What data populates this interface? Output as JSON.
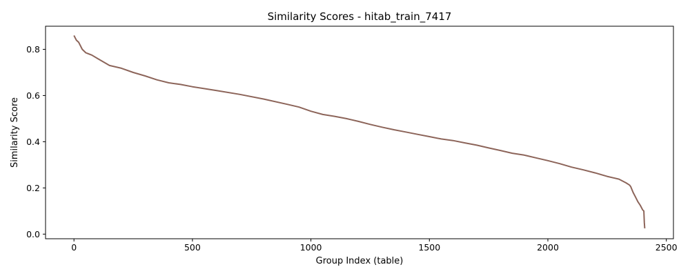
{
  "chart_data": {
    "type": "line",
    "title": "Similarity Scores - hitab_train_7417",
    "xlabel": "Group Index (table)",
    "ylabel": "Similarity Score",
    "xlim": [
      -120,
      2530
    ],
    "ylim": [
      -0.02,
      0.9
    ],
    "xticks": [
      0,
      500,
      1000,
      1500,
      2000,
      2500
    ],
    "xtick_labels": [
      "0",
      "500",
      "1000",
      "1500",
      "2000",
      "2500"
    ],
    "yticks": [
      0.0,
      0.2,
      0.4,
      0.6,
      0.8
    ],
    "ytick_labels": [
      "0.0",
      "0.2",
      "0.4",
      "0.6",
      "0.8"
    ],
    "grid": false,
    "line_color": "#8c6459",
    "series": [
      {
        "x": [
          0,
          10,
          20,
          35,
          50,
          75,
          100,
          125,
          150,
          200,
          250,
          300,
          350,
          400,
          450,
          500,
          600,
          700,
          800,
          900,
          950,
          1000,
          1050,
          1100,
          1150,
          1200,
          1250,
          1300,
          1350,
          1400,
          1450,
          1500,
          1550,
          1600,
          1650,
          1700,
          1750,
          1800,
          1850,
          1900,
          1950,
          2000,
          2050,
          2100,
          2150,
          2200,
          2250,
          2300,
          2330,
          2345,
          2350,
          2360,
          2370,
          2380,
          2390,
          2400,
          2405,
          2407,
          2409
        ],
        "y": [
          0.86,
          0.84,
          0.83,
          0.8,
          0.785,
          0.775,
          0.76,
          0.745,
          0.73,
          0.718,
          0.7,
          0.685,
          0.668,
          0.655,
          0.648,
          0.638,
          0.622,
          0.605,
          0.585,
          0.562,
          0.55,
          0.532,
          0.518,
          0.51,
          0.5,
          0.488,
          0.475,
          0.463,
          0.452,
          0.442,
          0.432,
          0.422,
          0.412,
          0.405,
          0.395,
          0.385,
          0.373,
          0.362,
          0.35,
          0.342,
          0.33,
          0.318,
          0.305,
          0.29,
          0.278,
          0.265,
          0.25,
          0.238,
          0.222,
          0.212,
          0.205,
          0.18,
          0.16,
          0.14,
          0.125,
          0.105,
          0.1,
          0.05,
          0.025
        ]
      }
    ]
  }
}
